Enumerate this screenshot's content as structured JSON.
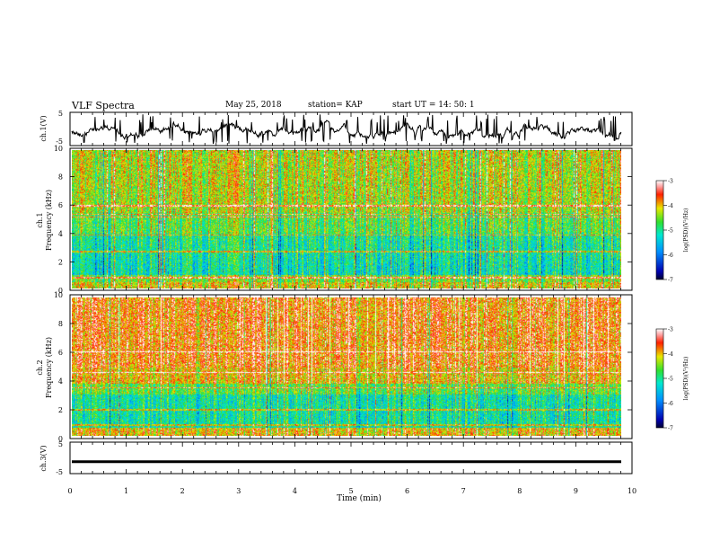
{
  "header": {
    "title": "VLF Spectra",
    "date": "May 25, 2018",
    "station": "station= KAP",
    "start_ut": "start  UT =   14: 50: 1"
  },
  "chart_data": [
    {
      "type": "line",
      "name": "ch1-waveform",
      "ylabel": "ch.1(V)",
      "ylim": [
        -5,
        5
      ],
      "yticks": [
        "5",
        "-5"
      ],
      "xlim": [
        0,
        10
      ]
    },
    {
      "type": "heatmap",
      "name": "ch1-spectrogram",
      "ylabel_top": "ch.1",
      "ylabel": "Frequency (kHz)",
      "ylim": [
        0,
        10
      ],
      "yticks": [
        "0",
        "2",
        "4",
        "6",
        "8",
        "10"
      ],
      "xlim": [
        0,
        10
      ],
      "colorbar": {
        "label": "log(PSD)(V²/Hz)",
        "range": [
          -7,
          -3
        ],
        "ticks": [
          "-3",
          "-4",
          "-5",
          "-6",
          "-7"
        ]
      }
    },
    {
      "type": "heatmap",
      "name": "ch2-spectrogram",
      "ylabel_top": "ch.2",
      "ylabel": "Frequency (kHz)",
      "ylim": [
        0,
        10
      ],
      "yticks": [
        "0",
        "2",
        "4",
        "6",
        "8",
        "10"
      ],
      "xlim": [
        0,
        10
      ],
      "colorbar": {
        "label": "log(PSD)(V²/Hz)",
        "range": [
          -7,
          -3
        ],
        "ticks": [
          "-3",
          "-4",
          "-5",
          "-6",
          "-7"
        ]
      }
    },
    {
      "type": "line",
      "name": "ch3-waveform",
      "ylabel": "ch.3(V)",
      "ylim": [
        -5,
        5
      ],
      "yticks": [
        "5",
        "-5"
      ],
      "xlim": [
        0,
        10
      ],
      "constant_value": -1.2,
      "xlabel": "Time (min)",
      "xticks": [
        "0",
        "1",
        "2",
        "3",
        "4",
        "5",
        "6",
        "7",
        "8",
        "9",
        "10"
      ]
    }
  ]
}
